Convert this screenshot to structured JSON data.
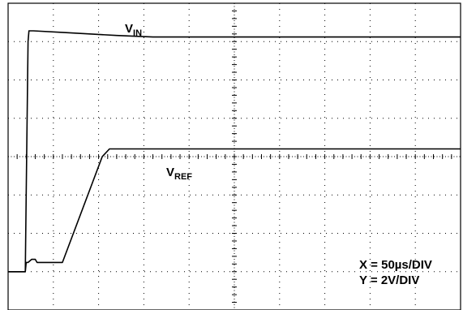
{
  "chart_data": {
    "type": "line",
    "title": "",
    "xlabel": "",
    "ylabel": "",
    "grid": true,
    "x_divisions": 10,
    "y_divisions": 8,
    "xlim": [
      0,
      500
    ],
    "ylim": [
      0,
      16
    ],
    "x_unit": "µs",
    "y_unit": "V",
    "series": [
      {
        "name": "VIN",
        "label_main": "V",
        "label_sub": "IN",
        "color": "#000000",
        "x": [
          0,
          19,
          20,
          22,
          23,
          28,
          60,
          120,
          160,
          500
        ],
        "y": [
          2.0,
          2.0,
          6.0,
          14.0,
          14.56,
          14.56,
          14.48,
          14.32,
          14.24,
          14.24
        ]
      },
      {
        "name": "VREF",
        "label_main": "V",
        "label_sub": "REF",
        "color": "#000000",
        "x": [
          0,
          19,
          20,
          22,
          26,
          30,
          32,
          60,
          104,
          112,
          500
        ],
        "y": [
          2.0,
          2.0,
          2.48,
          2.48,
          2.64,
          2.64,
          2.48,
          2.48,
          8.0,
          8.4,
          8.4
        ]
      }
    ],
    "annotations": {
      "x_scale": "X = 50µs/DIV",
      "y_scale": "Y = 2V/DIV"
    }
  }
}
